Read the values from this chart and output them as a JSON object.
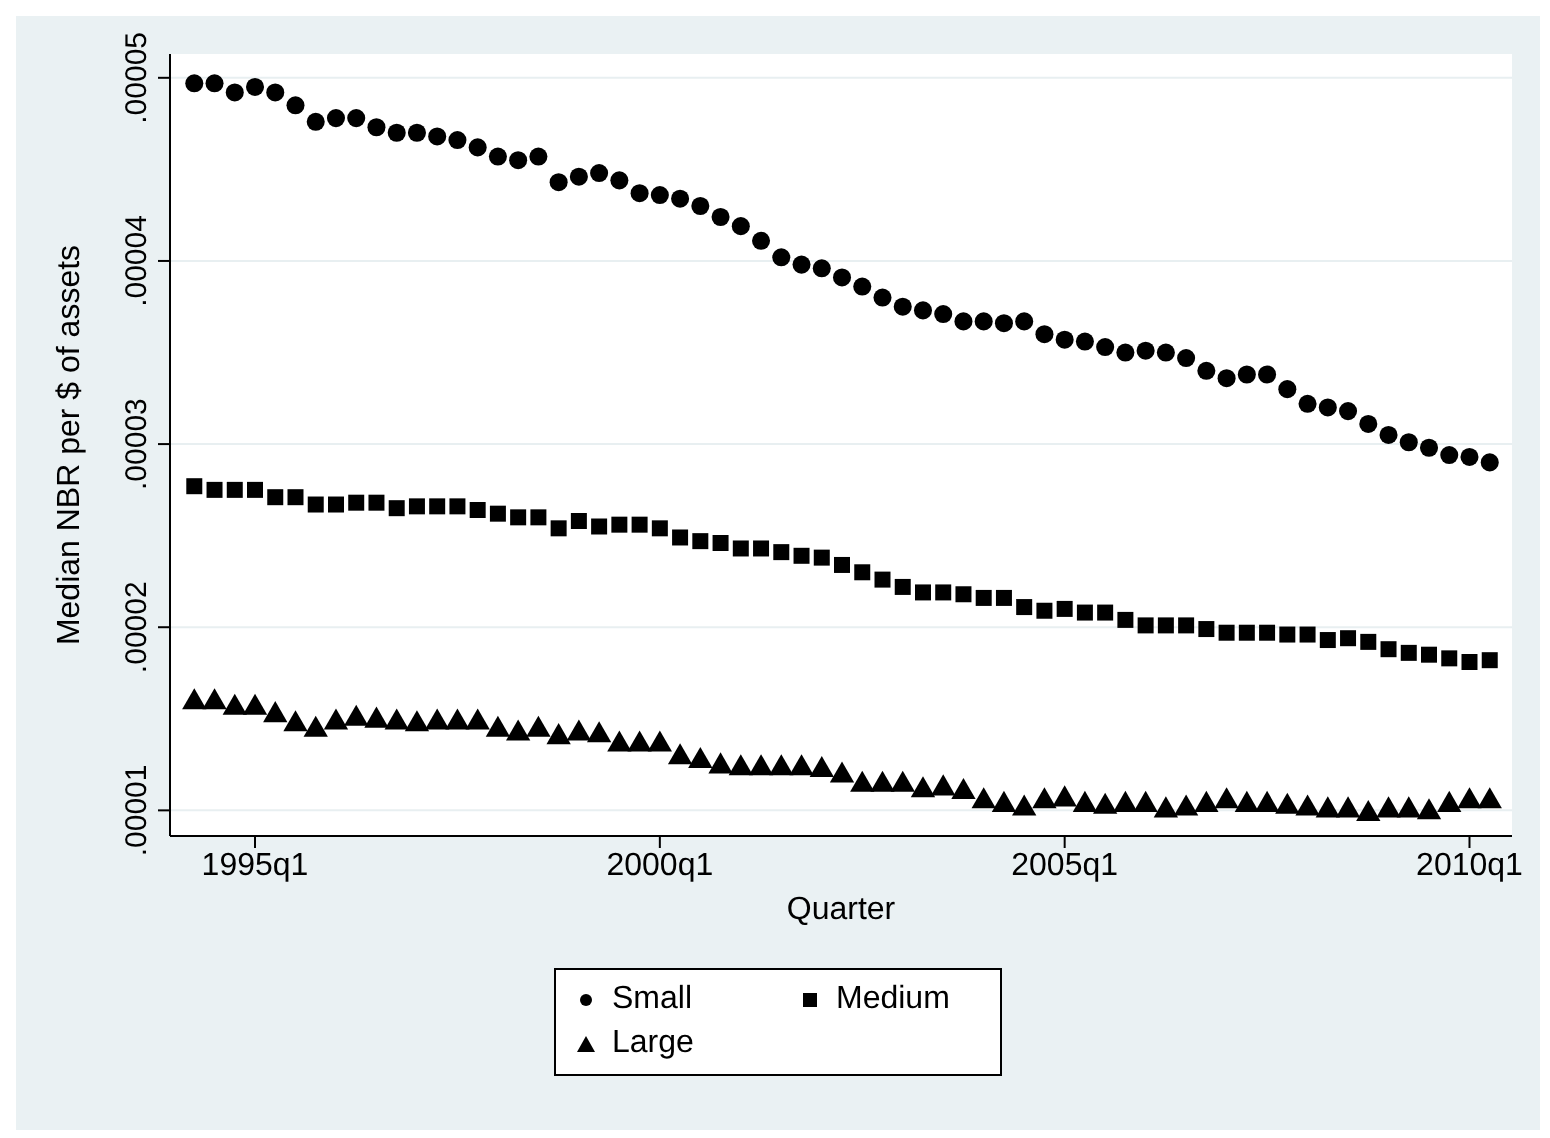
{
  "chart_data": {
    "type": "scatter",
    "xlabel": "Quarter",
    "ylabel": "Median NBR per $ of assets",
    "categories": [
      null,
      null,
      null,
      "1995q1",
      null,
      null,
      null,
      null,
      null,
      null,
      null,
      null,
      null,
      null,
      null,
      null,
      null,
      null,
      null,
      null,
      null,
      null,
      null,
      "2000q1",
      null,
      null,
      null,
      null,
      null,
      null,
      null,
      null,
      null,
      null,
      null,
      null,
      null,
      null,
      null,
      null,
      null,
      null,
      null,
      "2005q1",
      null,
      null,
      null,
      null,
      null,
      null,
      null,
      null,
      null,
      null,
      null,
      null,
      null,
      null,
      null,
      null,
      null,
      null,
      null,
      "2010q1",
      null
    ],
    "series": [
      {
        "name": "Small",
        "color": "#000000",
        "marker": "circle",
        "values": [
          4.97e-05,
          4.97e-05,
          4.92e-05,
          4.95e-05,
          4.92e-05,
          4.85e-05,
          4.76e-05,
          4.78e-05,
          4.78e-05,
          4.73e-05,
          4.7e-05,
          4.7e-05,
          4.68e-05,
          4.66e-05,
          4.62e-05,
          4.57e-05,
          4.55e-05,
          4.57e-05,
          4.43e-05,
          4.46e-05,
          4.48e-05,
          4.44e-05,
          4.37e-05,
          4.36e-05,
          4.34e-05,
          4.3e-05,
          4.24e-05,
          4.19e-05,
          4.11e-05,
          4.02e-05,
          3.98e-05,
          3.96e-05,
          3.91e-05,
          3.86e-05,
          3.8e-05,
          3.75e-05,
          3.73e-05,
          3.71e-05,
          3.67e-05,
          3.67e-05,
          3.66e-05,
          3.67e-05,
          3.6e-05,
          3.57e-05,
          3.56e-05,
          3.53e-05,
          3.5e-05,
          3.51e-05,
          3.5e-05,
          3.47e-05,
          3.4e-05,
          3.36e-05,
          3.38e-05,
          3.38e-05,
          3.3e-05,
          3.22e-05,
          3.2e-05,
          3.18e-05,
          3.11e-05,
          3.05e-05,
          3.01e-05,
          2.98e-05,
          2.94e-05,
          2.93e-05,
          2.9e-05
        ]
      },
      {
        "name": "Medium",
        "color": "#000000",
        "marker": "square",
        "values": [
          2.77e-05,
          2.75e-05,
          2.75e-05,
          2.75e-05,
          2.71e-05,
          2.71e-05,
          2.67e-05,
          2.67e-05,
          2.68e-05,
          2.68e-05,
          2.65e-05,
          2.66e-05,
          2.66e-05,
          2.66e-05,
          2.64e-05,
          2.62e-05,
          2.6e-05,
          2.6e-05,
          2.54e-05,
          2.58e-05,
          2.55e-05,
          2.56e-05,
          2.56e-05,
          2.54e-05,
          2.49e-05,
          2.47e-05,
          2.46e-05,
          2.43e-05,
          2.43e-05,
          2.41e-05,
          2.39e-05,
          2.38e-05,
          2.34e-05,
          2.3e-05,
          2.26e-05,
          2.22e-05,
          2.19e-05,
          2.19e-05,
          2.18e-05,
          2.16e-05,
          2.16e-05,
          2.11e-05,
          2.09e-05,
          2.1e-05,
          2.08e-05,
          2.08e-05,
          2.04e-05,
          2.01e-05,
          2.01e-05,
          2.01e-05,
          1.99e-05,
          1.97e-05,
          1.97e-05,
          1.97e-05,
          1.96e-05,
          1.96e-05,
          1.93e-05,
          1.94e-05,
          1.92e-05,
          1.88e-05,
          1.86e-05,
          1.85e-05,
          1.83e-05,
          1.81e-05,
          1.82e-05
        ]
      },
      {
        "name": "Large",
        "color": "#000000",
        "marker": "triangle",
        "values": [
          1.59e-05,
          1.59e-05,
          1.56e-05,
          1.56e-05,
          1.52e-05,
          1.47e-05,
          1.44e-05,
          1.48e-05,
          1.5e-05,
          1.49e-05,
          1.48e-05,
          1.47e-05,
          1.48e-05,
          1.48e-05,
          1.48e-05,
          1.44e-05,
          1.42e-05,
          1.44e-05,
          1.4e-05,
          1.42e-05,
          1.41e-05,
          1.36e-05,
          1.36e-05,
          1.36e-05,
          1.29e-05,
          1.27e-05,
          1.24e-05,
          1.23e-05,
          1.23e-05,
          1.23e-05,
          1.23e-05,
          1.22e-05,
          1.19e-05,
          1.14e-05,
          1.14e-05,
          1.14e-05,
          1.11e-05,
          1.12e-05,
          1.1e-05,
          1.05e-05,
          1.03e-05,
          1.01e-05,
          1.05e-05,
          1.06e-05,
          1.03e-05,
          1.02e-05,
          1.03e-05,
          1.03e-05,
          1e-05,
          1.01e-05,
          1.03e-05,
          1.05e-05,
          1.03e-05,
          1.03e-05,
          1.02e-05,
          1.01e-05,
          1e-05,
          1e-05,
          9.8e-06,
          1e-05,
          1e-05,
          9.9e-06,
          1.03e-05,
          1.05e-05,
          1.05e-05
        ]
      }
    ],
    "ylim": [
      8.6e-06,
      5.13e-05
    ],
    "yticks": [
      {
        "value": 1e-05,
        "label": ".00001"
      },
      {
        "value": 2e-05,
        "label": ".00002"
      },
      {
        "value": 3e-05,
        "label": ".00003"
      },
      {
        "value": 4e-05,
        "label": ".00004"
      },
      {
        "value": 5e-05,
        "label": ".00005"
      }
    ],
    "grid": "y",
    "legend": "bottom"
  }
}
